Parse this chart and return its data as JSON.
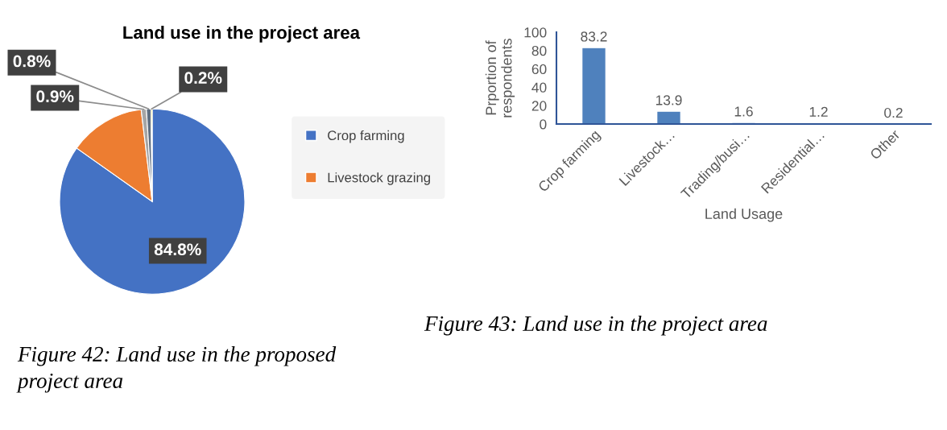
{
  "chart_data": [
    {
      "type": "pie",
      "title": "Land use in the project area",
      "categories": [
        "Crop farming",
        "Livestock grazing",
        null,
        null,
        null
      ],
      "values": [
        84.8,
        13.3,
        0.9,
        0.8,
        0.2
      ],
      "colors": [
        "#4472c4",
        "#ed7d31",
        "#a5a5a5",
        "#5f6f82",
        "#ffc000"
      ],
      "value_labels": [
        "84.8%",
        null,
        "0.9%",
        "0.8%",
        "0.2%"
      ],
      "legend": "right",
      "annotations": [
        "Figure 42: Land use in the proposed\nproject area"
      ]
    },
    {
      "type": "bar",
      "categories": [
        "Crop farming",
        "Livestock…",
        "Trading/busi…",
        "Residential…",
        "Other"
      ],
      "values": [
        83.2,
        13.9,
        1.6,
        1.2,
        0.2
      ],
      "color": "#4f81bd",
      "xlabel": "Land Usage",
      "ylabel": "Prportion of\nrespondents",
      "ylim": [
        0,
        100
      ],
      "yticks": [
        0,
        20,
        40,
        60,
        80,
        100
      ],
      "data_labels": true,
      "annotations": [
        "Figure 43: Land use in the project area"
      ]
    }
  ]
}
